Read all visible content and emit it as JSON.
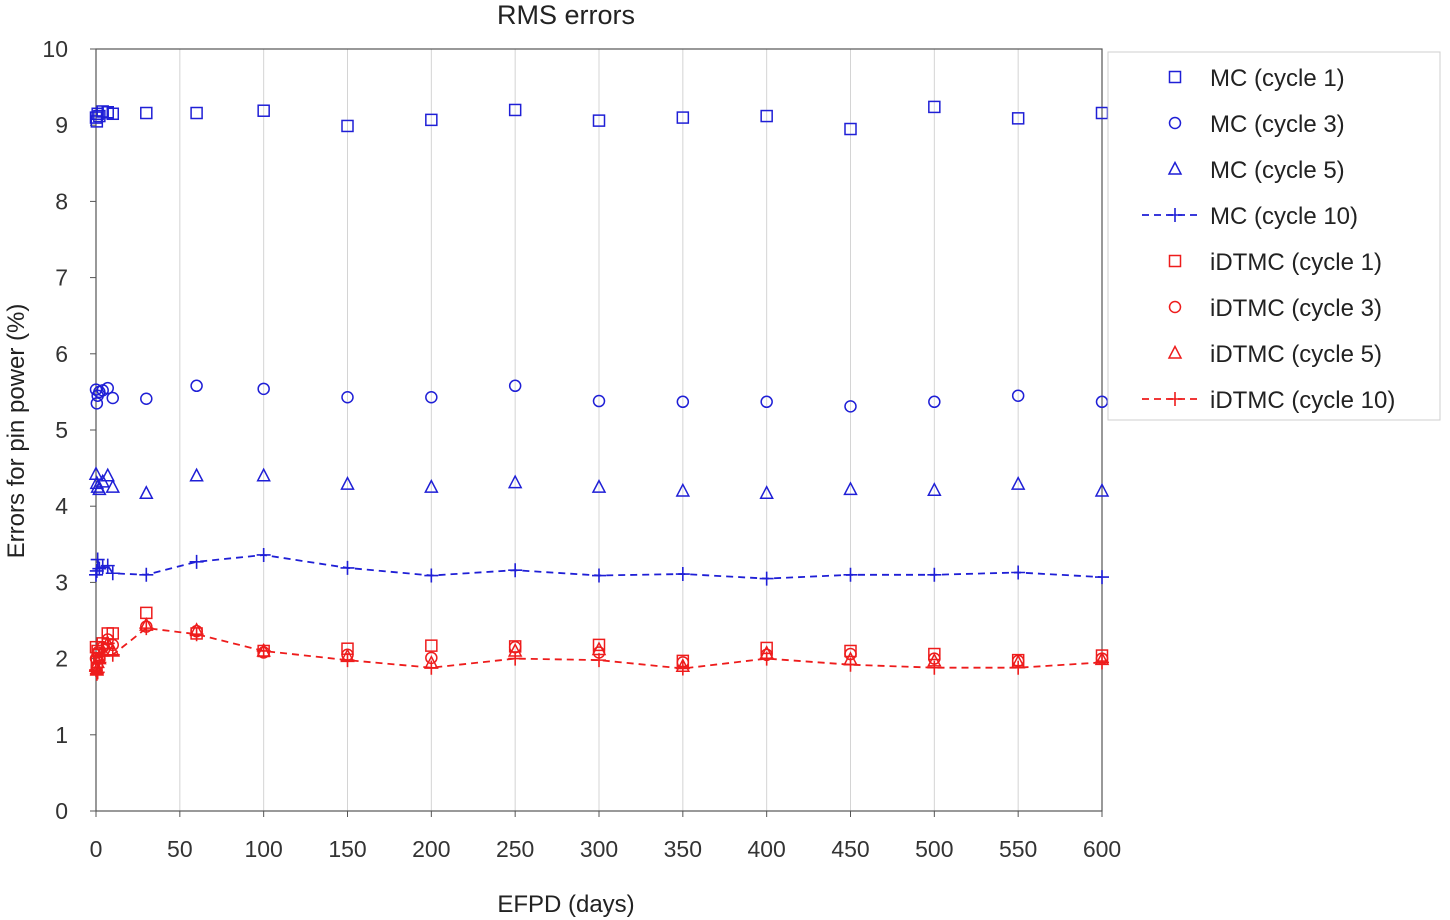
{
  "chart_data": {
    "type": "scatter",
    "title": "RMS errors",
    "xlabel": "EFPD (days)",
    "ylabel": "Errors for pin power (%)",
    "xlim": [
      0,
      600
    ],
    "ylim": [
      0,
      10
    ],
    "xticks": [
      0,
      50,
      100,
      150,
      200,
      250,
      300,
      350,
      400,
      450,
      500,
      550,
      600
    ],
    "yticks": [
      0,
      1,
      2,
      3,
      4,
      5,
      6,
      7,
      8,
      9,
      10
    ],
    "grid": "vertical",
    "legend_position": "right",
    "series": [
      {
        "name": "MC (cycle 1)",
        "color": "#1f1fd6",
        "marker": "square",
        "line": false,
        "x": [
          0,
          0.5,
          1,
          2,
          4,
          7,
          10,
          30,
          60,
          100,
          150,
          200,
          250,
          300,
          350,
          400,
          450,
          500,
          550,
          600
        ],
        "y": [
          9.1,
          9.05,
          9.15,
          9.12,
          9.18,
          9.17,
          9.15,
          9.16,
          9.16,
          9.19,
          8.99,
          9.07,
          9.2,
          9.06,
          9.1,
          9.12,
          8.95,
          9.24,
          9.09,
          9.16
        ]
      },
      {
        "name": "MC (cycle 3)",
        "color": "#1f1fd6",
        "marker": "circle",
        "line": false,
        "x": [
          0,
          0.5,
          1,
          2,
          4,
          7,
          10,
          30,
          60,
          100,
          150,
          200,
          250,
          300,
          350,
          400,
          450,
          500,
          550,
          600
        ],
        "y": [
          5.53,
          5.35,
          5.45,
          5.5,
          5.52,
          5.55,
          5.42,
          5.41,
          5.58,
          5.54,
          5.43,
          5.43,
          5.58,
          5.38,
          5.37,
          5.37,
          5.31,
          5.37,
          5.45,
          5.37
        ]
      },
      {
        "name": "MC (cycle 5)",
        "color": "#1f1fd6",
        "marker": "triangle",
        "line": false,
        "x": [
          0,
          0.5,
          1,
          2,
          4,
          7,
          10,
          30,
          60,
          100,
          150,
          200,
          250,
          300,
          350,
          400,
          450,
          500,
          550,
          600
        ],
        "y": [
          4.42,
          4.3,
          4.25,
          4.22,
          4.32,
          4.4,
          4.25,
          4.17,
          4.4,
          4.4,
          4.29,
          4.25,
          4.31,
          4.25,
          4.2,
          4.17,
          4.22,
          4.21,
          4.29,
          4.2
        ]
      },
      {
        "name": "MC (cycle 10)",
        "color": "#1f1fd6",
        "marker": "plus",
        "line": true,
        "x": [
          0,
          0.5,
          1,
          2,
          4,
          7,
          10,
          30,
          60,
          100,
          150,
          200,
          250,
          300,
          350,
          400,
          450,
          500,
          550,
          600
        ],
        "y": [
          3.1,
          3.15,
          3.3,
          3.18,
          3.2,
          3.22,
          3.12,
          3.1,
          3.27,
          3.36,
          3.19,
          3.09,
          3.16,
          3.09,
          3.11,
          3.05,
          3.1,
          3.1,
          3.13,
          3.07
        ]
      },
      {
        "name": "iDTMC (cycle 1)",
        "color": "#ee1c1c",
        "marker": "square",
        "line": false,
        "x": [
          0,
          0.5,
          1,
          2,
          4,
          7,
          10,
          30,
          60,
          100,
          150,
          200,
          250,
          300,
          350,
          400,
          450,
          500,
          550,
          600
        ],
        "y": [
          2.15,
          1.95,
          2.1,
          2.05,
          2.2,
          2.33,
          2.33,
          2.6,
          2.33,
          2.1,
          2.13,
          2.17,
          2.16,
          2.18,
          1.97,
          2.14,
          2.1,
          2.06,
          1.98,
          2.04
        ]
      },
      {
        "name": "iDTMC (cycle 3)",
        "color": "#ee1c1c",
        "marker": "circle",
        "line": false,
        "x": [
          0,
          0.5,
          1,
          2,
          4,
          7,
          10,
          30,
          60,
          100,
          150,
          200,
          250,
          300,
          350,
          400,
          450,
          500,
          550,
          600
        ],
        "y": [
          2.0,
          1.9,
          2.08,
          2.0,
          2.15,
          2.25,
          2.18,
          2.42,
          2.36,
          2.08,
          2.05,
          2.01,
          2.15,
          2.08,
          1.95,
          2.05,
          2.06,
          2.0,
          1.97,
          2.0
        ]
      },
      {
        "name": "iDTMC (cycle 5)",
        "color": "#ee1c1c",
        "marker": "triangle",
        "line": false,
        "x": [
          0,
          0.5,
          1,
          2,
          4,
          7,
          10,
          30,
          60,
          100,
          150,
          200,
          250,
          300,
          350,
          400,
          450,
          500,
          550,
          600
        ],
        "y": [
          1.9,
          1.85,
          1.95,
          2.0,
          2.1,
          2.2,
          2.1,
          2.44,
          2.37,
          2.1,
          2.03,
          1.94,
          2.1,
          2.12,
          1.9,
          2.07,
          1.99,
          1.97,
          1.95,
          1.99
        ]
      },
      {
        "name": "iDTMC (cycle 10)",
        "color": "#ee1c1c",
        "marker": "plus",
        "line": true,
        "x": [
          0,
          0.5,
          1,
          2,
          4,
          7,
          10,
          30,
          60,
          100,
          150,
          200,
          250,
          300,
          350,
          400,
          450,
          500,
          550,
          600
        ],
        "y": [
          1.85,
          1.8,
          1.82,
          1.95,
          2.05,
          2.2,
          2.05,
          2.4,
          2.32,
          2.1,
          1.98,
          1.88,
          2.0,
          1.98,
          1.87,
          2.0,
          1.92,
          1.88,
          1.88,
          1.95
        ]
      }
    ]
  }
}
